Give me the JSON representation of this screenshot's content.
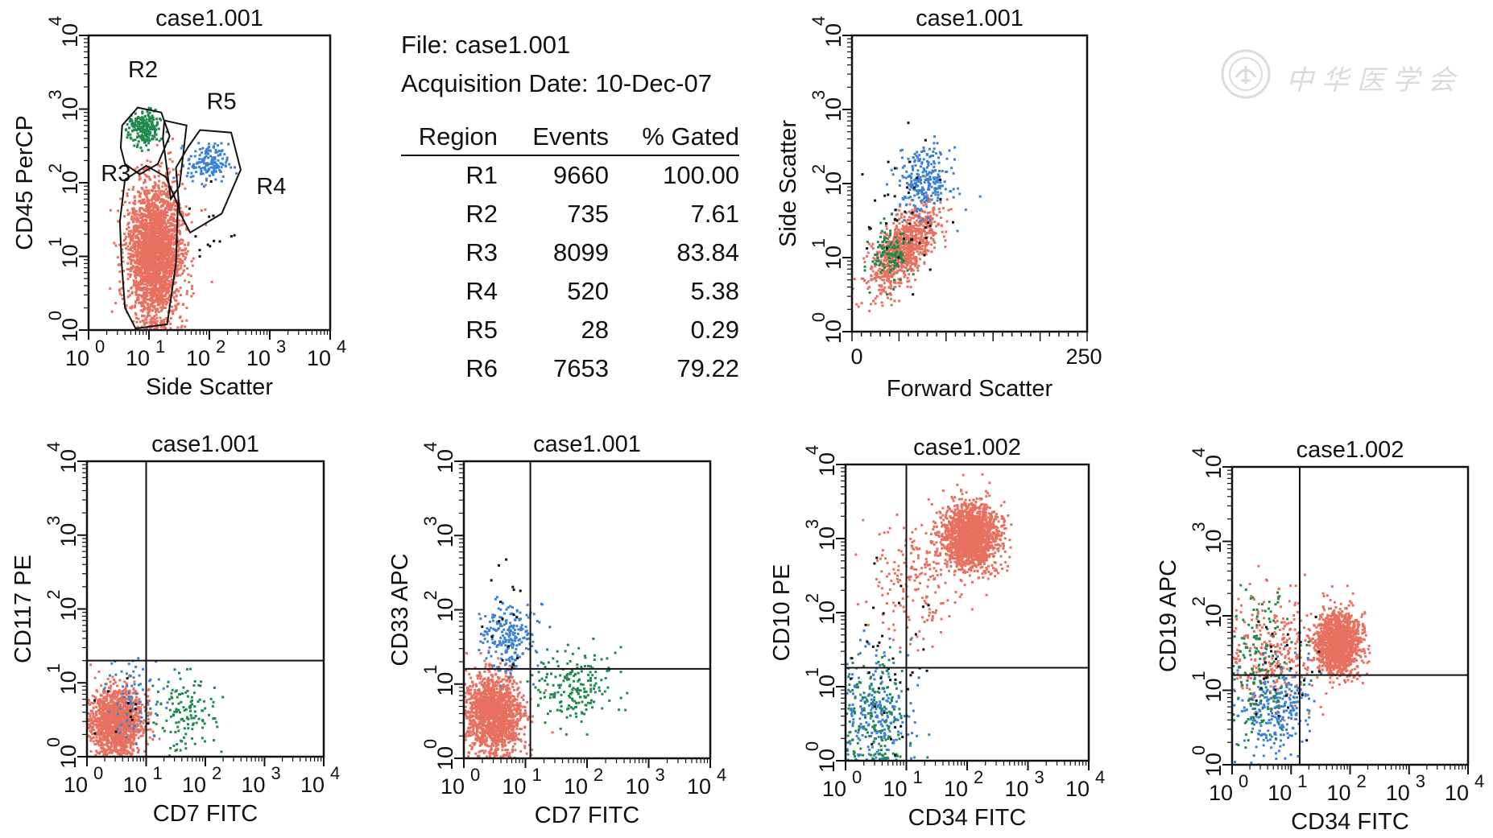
{
  "header": {
    "file_line": "File: case1.001",
    "date_line": "Acquisition Date: 10-Dec-07"
  },
  "stats_table": {
    "columns": [
      "Region",
      "Events",
      "% Gated"
    ],
    "rows": [
      [
        "R1",
        "9660",
        "100.00"
      ],
      [
        "R2",
        "735",
        "7.61"
      ],
      [
        "R3",
        "8099",
        "83.84"
      ],
      [
        "R4",
        "520",
        "5.38"
      ],
      [
        "R5",
        "28",
        "0.29"
      ],
      [
        "R6",
        "7653",
        "79.22"
      ]
    ]
  },
  "watermark": {
    "text": "中华医学会"
  },
  "colors": {
    "red_population": "#e8705f",
    "green_population": "#1f8a4c",
    "blue_population": "#3b82d6",
    "black_population": "#111111",
    "axis": "#111111"
  },
  "chart_data": [
    {
      "id": "p1",
      "type": "scatter",
      "title": "case1.001",
      "xlabel": "Side Scatter",
      "ylabel": "CD45 PerCP",
      "xscale": "log",
      "yscale": "log",
      "xlim": [
        1,
        10000
      ],
      "ylim": [
        1,
        10000
      ],
      "x_tick_exponents": [
        "0",
        "1",
        "2",
        "3",
        "4"
      ],
      "y_tick_exponents": [
        "0",
        "1",
        "2",
        "3",
        "4"
      ],
      "tick_base": "10",
      "gates": [
        {
          "name": "R2",
          "points": [
            [
              3.6,
              600
            ],
            [
              6.5,
              1050
            ],
            [
              16,
              900
            ],
            [
              22,
              430
            ],
            [
              14,
              180
            ],
            [
              7,
              130
            ],
            [
              4,
              180
            ],
            [
              3.4,
              300
            ]
          ]
        },
        {
          "name": "R3",
          "points": [
            [
              3.5,
              9
            ],
            [
              3.3,
              30
            ],
            [
              4,
              110
            ],
            [
              9,
              170
            ],
            [
              19,
              120
            ],
            [
              30,
              50
            ],
            [
              28,
              8
            ],
            [
              20,
              1.2
            ],
            [
              6,
              1.05
            ],
            [
              4,
              2
            ]
          ]
        },
        {
          "name": "R5",
          "points": [
            [
              17,
              400
            ],
            [
              18,
              700
            ],
            [
              42,
              600
            ],
            [
              32,
              90
            ],
            [
              23,
              60
            ]
          ]
        },
        {
          "name": "R4",
          "points": [
            [
              28,
              160
            ],
            [
              45,
              310
            ],
            [
              70,
              520
            ],
            [
              230,
              480
            ],
            [
              330,
              150
            ],
            [
              160,
              38
            ],
            [
              48,
              21
            ],
            [
              32,
              40
            ]
          ]
        }
      ],
      "gate_labels": [
        {
          "text": "R2",
          "x": 4.5,
          "y": 2700
        },
        {
          "text": "R5",
          "x": 90,
          "y": 1000
        },
        {
          "text": "R3",
          "x": 1.6,
          "y": 105
        },
        {
          "text": "R4",
          "x": 600,
          "y": 70
        }
      ],
      "populations": [
        {
          "color": "red",
          "count": 2600,
          "cx": 12,
          "cy": 12,
          "sx": 0.22,
          "sy": 0.45,
          "shape": "column"
        },
        {
          "color": "green",
          "count": 220,
          "cx": 8,
          "cy": 550,
          "sx": 0.13,
          "sy": 0.12
        },
        {
          "color": "blue",
          "count": 160,
          "cx": 90,
          "cy": 190,
          "sx": 0.17,
          "sy": 0.13
        },
        {
          "color": "black",
          "count": 14,
          "cx": 80,
          "cy": 25,
          "sx": 0.25,
          "sy": 0.3
        }
      ]
    },
    {
      "id": "p2",
      "type": "scatter",
      "title": "case1.001",
      "xlabel": "Forward Scatter",
      "ylabel": "Side Scatter",
      "xscale": "linear",
      "yscale": "log",
      "xlim": [
        0,
        250
      ],
      "ylim": [
        1,
        10000
      ],
      "x_tick_labels": [
        "0",
        "250"
      ],
      "y_tick_exponents": [
        "0",
        "1",
        "2",
        "3",
        "4"
      ],
      "tick_base": "10",
      "populations": [
        {
          "color": "red",
          "count": 900,
          "cx": 55,
          "cy": 14,
          "sx": 18,
          "sy": 0.22,
          "shape": "diag",
          "slope": 0.011
        },
        {
          "color": "blue",
          "count": 260,
          "cx": 75,
          "cy": 110,
          "sx": 14,
          "sy": 0.22
        },
        {
          "color": "green",
          "count": 120,
          "cx": 40,
          "cy": 12,
          "sx": 10,
          "sy": 0.2
        },
        {
          "color": "black",
          "count": 40,
          "cx": 55,
          "cy": 40,
          "sx": 20,
          "sy": 0.45
        }
      ]
    },
    {
      "id": "p3",
      "type": "scatter",
      "title": "case1.001",
      "xlabel": "CD7 FITC",
      "ylabel": "CD117 PE",
      "xscale": "log",
      "yscale": "log",
      "xlim": [
        1,
        10000
      ],
      "ylim": [
        1,
        10000
      ],
      "x_tick_exponents": [
        "0",
        "1",
        "2",
        "3",
        "4"
      ],
      "y_tick_exponents": [
        "0",
        "1",
        "2",
        "3",
        "4"
      ],
      "tick_base": "10",
      "quadrant": {
        "x": 10,
        "y": 20
      },
      "populations": [
        {
          "color": "red",
          "count": 1400,
          "cx": 3,
          "cy": 3,
          "sx": 0.22,
          "sy": 0.22
        },
        {
          "color": "green",
          "count": 130,
          "cx": 45,
          "cy": 4,
          "sx": 0.25,
          "sy": 0.25
        },
        {
          "color": "blue",
          "count": 70,
          "cx": 6,
          "cy": 7,
          "sx": 0.25,
          "sy": 0.3
        },
        {
          "color": "black",
          "count": 12,
          "cx": 5,
          "cy": 5,
          "sx": 0.3,
          "sy": 0.3
        }
      ]
    },
    {
      "id": "p4",
      "type": "scatter",
      "title": "case1.001",
      "xlabel": "CD7 FITC",
      "ylabel": "CD33 APC",
      "xscale": "log",
      "yscale": "log",
      "xlim": [
        1,
        10000
      ],
      "ylim": [
        1,
        10000
      ],
      "x_tick_exponents": [
        "0",
        "1",
        "2",
        "3",
        "4"
      ],
      "y_tick_exponents": [
        "0",
        "1",
        "2",
        "3",
        "4"
      ],
      "tick_base": "10",
      "quadrant": {
        "x": 12,
        "y": 16
      },
      "populations": [
        {
          "color": "red",
          "count": 1500,
          "cx": 3,
          "cy": 4,
          "sx": 0.22,
          "sy": 0.26
        },
        {
          "color": "blue",
          "count": 220,
          "cx": 5,
          "cy": 45,
          "sx": 0.22,
          "sy": 0.22
        },
        {
          "color": "green",
          "count": 190,
          "cx": 60,
          "cy": 10,
          "sx": 0.3,
          "sy": 0.25
        },
        {
          "color": "black",
          "count": 18,
          "cx": 4,
          "cy": 60,
          "sx": 0.25,
          "sy": 0.35
        }
      ]
    },
    {
      "id": "p5",
      "type": "scatter",
      "title": "case1.002",
      "xlabel": "CD34 FITC",
      "ylabel": "CD10 PE",
      "xscale": "log",
      "yscale": "log",
      "xlim": [
        1,
        10000
      ],
      "ylim": [
        1,
        10000
      ],
      "x_tick_exponents": [
        "0",
        "1",
        "2",
        "3",
        "4"
      ],
      "y_tick_exponents": [
        "0",
        "1",
        "2",
        "3",
        "4"
      ],
      "tick_base": "10",
      "quadrant": {
        "x": 10,
        "y": 18
      },
      "populations": [
        {
          "color": "red",
          "count": 1700,
          "cx": 110,
          "cy": 1100,
          "sx": 0.22,
          "sy": 0.22
        },
        {
          "color": "red",
          "count": 200,
          "cx": 15,
          "cy": 300,
          "sx": 0.4,
          "sy": 0.4
        },
        {
          "color": "blue",
          "count": 230,
          "cx": 3,
          "cy": 5,
          "sx": 0.3,
          "sy": 0.4
        },
        {
          "color": "green",
          "count": 150,
          "cx": 3,
          "cy": 4,
          "sx": 0.28,
          "sy": 0.4
        },
        {
          "color": "black",
          "count": 40,
          "cx": 6,
          "cy": 20,
          "sx": 0.35,
          "sy": 0.6
        }
      ]
    },
    {
      "id": "p6",
      "type": "scatter",
      "title": "case1.002",
      "xlabel": "CD34 FITC",
      "ylabel": "CD19 APC",
      "xscale": "log",
      "yscale": "log",
      "xlim": [
        1,
        10000
      ],
      "ylim": [
        1,
        10000
      ],
      "x_tick_exponents": [
        "0",
        "1",
        "2",
        "3",
        "4"
      ],
      "y_tick_exponents": [
        "0",
        "1",
        "2",
        "3",
        "4"
      ],
      "tick_base": "10",
      "quadrant": {
        "x": 14,
        "y": 16
      },
      "populations": [
        {
          "color": "red",
          "count": 1500,
          "cx": 60,
          "cy": 45,
          "sx": 0.18,
          "sy": 0.2
        },
        {
          "color": "red",
          "count": 300,
          "cx": 5,
          "cy": 30,
          "sx": 0.35,
          "sy": 0.4
        },
        {
          "color": "blue",
          "count": 260,
          "cx": 5,
          "cy": 6,
          "sx": 0.3,
          "sy": 0.3
        },
        {
          "color": "green",
          "count": 150,
          "cx": 3,
          "cy": 25,
          "sx": 0.3,
          "sy": 0.45
        },
        {
          "color": "black",
          "count": 30,
          "cx": 6,
          "cy": 20,
          "sx": 0.35,
          "sy": 0.5
        }
      ]
    }
  ]
}
